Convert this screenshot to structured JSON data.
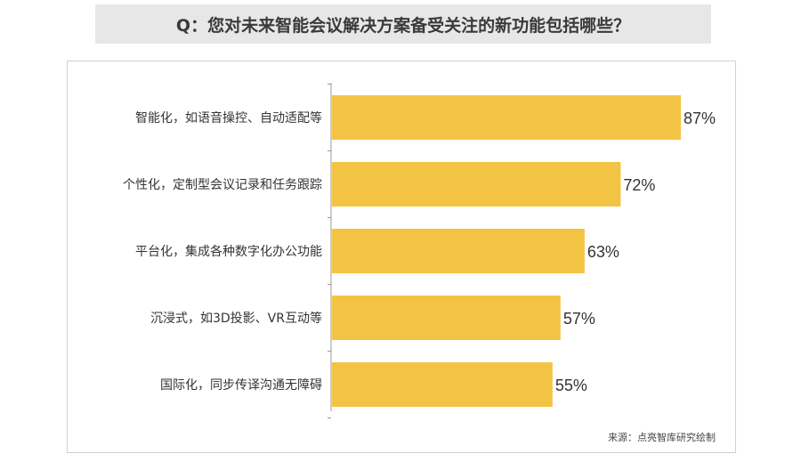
{
  "header": {
    "title": "Q：您对未来智能会议解决方案备受关注的新功能包括哪些？"
  },
  "footer": {
    "source": "来源：点亮智库研究绘制"
  },
  "chart_data": {
    "type": "bar",
    "orientation": "horizontal",
    "categories": [
      "智能化，如语音操控、自动适配等",
      "个性化，定制型会议记录和任务跟踪",
      "平台化，集成各种数字化办公功能",
      "沉浸式，如3D投影、VR互动等",
      "国际化，同步传译沟通无障碍"
    ],
    "values": [
      87,
      72,
      63,
      57,
      55
    ],
    "data_labels": [
      "87%",
      "72%",
      "63%",
      "57%",
      "55%"
    ],
    "xlim": [
      0,
      100
    ],
    "bar_color": "#F3C444",
    "grid": false,
    "legend": "none"
  }
}
